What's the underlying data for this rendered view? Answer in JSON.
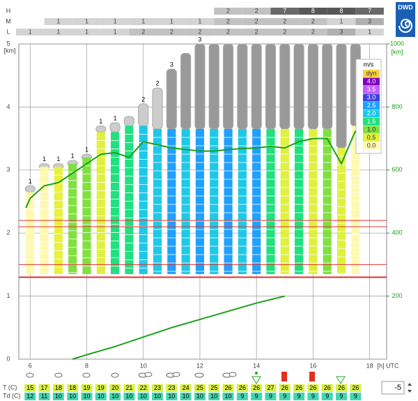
{
  "logo": "DWD",
  "chart_data": {
    "type": "meteogram",
    "y_label": "[km]",
    "y2_label": "[km]",
    "x_label": "[h] UTC",
    "xlim": [
      5.6,
      18.6
    ],
    "xticks": [
      6,
      8,
      10,
      12,
      14,
      16,
      18
    ],
    "ylim": [
      0,
      5
    ],
    "yticks": [
      0,
      1,
      2,
      3,
      4,
      5
    ],
    "y2lim": [
      0,
      1000
    ],
    "y2ticks": [
      200,
      400,
      600,
      800,
      1000
    ],
    "grid": true,
    "cloud_cover": {
      "hours": [
        6,
        7,
        8,
        9,
        10,
        11,
        12,
        13,
        14,
        15,
        16,
        17,
        18
      ],
      "rows": [
        {
          "name": "H",
          "values": [
            null,
            null,
            null,
            null,
            null,
            null,
            null,
            2,
            2,
            7,
            8,
            8,
            7
          ]
        },
        {
          "name": "M",
          "values": [
            null,
            1,
            1,
            1,
            1,
            1,
            1,
            2,
            2,
            2,
            2,
            1,
            3
          ]
        },
        {
          "name": "L",
          "values": [
            1,
            1,
            1,
            1,
            2,
            2,
            2,
            2,
            2,
            2,
            2,
            3,
            1
          ]
        }
      ]
    },
    "columns": {
      "x": [
        6,
        6.5,
        7,
        7.5,
        8,
        8.5,
        9,
        9.5,
        10,
        10.5,
        11,
        11.5,
        12,
        12.5,
        13,
        13.5,
        14,
        14.5,
        15,
        15.5,
        16,
        16.5,
        17,
        17.5
      ],
      "base": 1.35,
      "tops": [
        2.65,
        3.05,
        3.05,
        3.1,
        3.2,
        3.6,
        3.6,
        3.7,
        3.7,
        3.65,
        3.65,
        3.65,
        3.65,
        3.65,
        3.65,
        3.65,
        3.65,
        3.65,
        3.65,
        3.65,
        3.65,
        3.65,
        3.35,
        3.7
      ],
      "colors": [
        "#fff8b0",
        "#fff8b0",
        "#e8f040",
        "#80e040",
        "#80e040",
        "#e0f040",
        "#20e080",
        "#20e080",
        "#20c8e8",
        "#20c8e8",
        "#20a0ff",
        "#20c8e8",
        "#20a0ff",
        "#20c8e8",
        "#20a0ff",
        "#20c8e8",
        "#20a0ff",
        "#20e080",
        "#e0f040",
        "#20e080",
        "#e0f040",
        "#80e040",
        "#e0f040",
        "#fff8b0"
      ],
      "cloud_tops": [
        2.75,
        3.1,
        3.1,
        3.15,
        3.25,
        3.7,
        3.75,
        3.85,
        4.05,
        4.3,
        4.6,
        4.85,
        5,
        5,
        5,
        5,
        5,
        5,
        5,
        5,
        5,
        5,
        5,
        5
      ],
      "cloud_labels": [
        1,
        1,
        1,
        1,
        1,
        1,
        1,
        null,
        2,
        2,
        3,
        null,
        3,
        null,
        null,
        null,
        null,
        null,
        null,
        null,
        null,
        null,
        null,
        null
      ]
    },
    "reference_lines": {
      "values": [
        2.2,
        2.1,
        1.5,
        1.3
      ],
      "color": "#e03030"
    },
    "lines": [
      {
        "color": "#1aa01a",
        "axis": "y2",
        "x": [
          5.85,
          6,
          6.5,
          7,
          7.5,
          8,
          8.5,
          9,
          9.5,
          10,
          10.5,
          11,
          11.5,
          12,
          12.5,
          13,
          13.5,
          14,
          14.5,
          15,
          15.5,
          16,
          16.5,
          17,
          17.5
        ],
        "values": [
          480,
          510,
          550,
          560,
          590,
          620,
          650,
          655,
          640,
          690,
          680,
          670,
          665,
          660,
          660,
          665,
          668,
          670,
          675,
          670,
          690,
          700,
          700,
          620,
          725
        ]
      },
      {
        "color": "#1aa01a",
        "axis": "y",
        "x": [
          7.5,
          8,
          9,
          10,
          11,
          12,
          13,
          14,
          15
        ],
        "values": [
          0,
          0.07,
          0.2,
          0.35,
          0.5,
          0.63,
          0.76,
          0.89,
          1.0
        ]
      }
    ],
    "legend": {
      "title": "m/s",
      "labels": [
        "dyn",
        "4.0",
        "3.5",
        "3.0",
        "2.5",
        "2.0",
        "1.5",
        "1.0",
        "0.5",
        "0.0"
      ],
      "colors": [
        "#f8d040",
        "#8000c0",
        "#c060ff",
        "#4040e0",
        "#20a0ff",
        "#20c8e8",
        "#20e080",
        "#80e040",
        "#e0f040",
        "#fff8b0"
      ]
    },
    "temperature": {
      "labels": [
        "T  (C)",
        "Td (C)"
      ],
      "T": [
        15,
        17,
        18,
        18,
        19,
        19,
        20,
        21,
        22,
        23,
        23,
        24,
        25,
        25,
        26,
        26,
        26,
        27,
        26,
        26,
        26,
        26,
        26,
        26
      ],
      "Td": [
        12,
        11,
        10,
        10,
        10,
        10,
        10,
        10,
        10,
        10,
        10,
        10,
        10,
        10,
        10,
        9,
        9,
        9,
        9,
        9,
        9,
        9,
        9,
        9
      ]
    },
    "spinner": -5
  }
}
